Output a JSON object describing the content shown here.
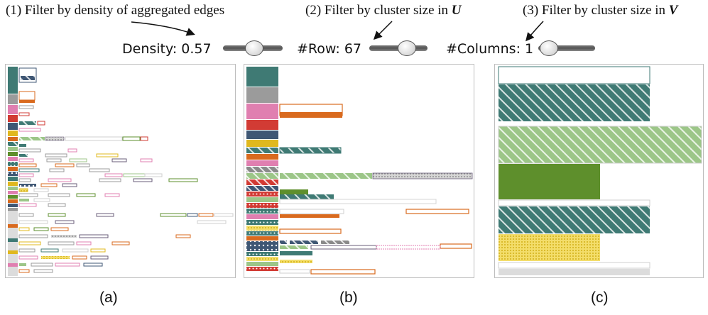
{
  "annotations": [
    {
      "num": "(1)",
      "text": "Filter by density of aggregated edges",
      "var": ""
    },
    {
      "num": "(2)",
      "text": "Filter by cluster size in ",
      "var": "U"
    },
    {
      "num": "(3)",
      "text": "Filter by cluster size in ",
      "var": "V"
    }
  ],
  "controls": {
    "density": {
      "label": "Density: 0.57",
      "value": 0.57
    },
    "rows": {
      "label": "#Row: 67",
      "value": 0.62
    },
    "columns": {
      "label": "#Columns: 1",
      "value": 0.05
    }
  },
  "panels": [
    {
      "caption": "(a)"
    },
    {
      "caption": "(b)"
    },
    {
      "caption": "(c)"
    }
  ],
  "colors": {
    "teal": "#3f7a74",
    "gray": "#9b9b9b",
    "pink": "#e07fb0",
    "red": "#d23b34",
    "navy": "#3f5774",
    "yellow": "#e0b81e",
    "orange": "#d96a1e",
    "lightgreen": "#9cc688",
    "green": "#5e8f2c",
    "lightgray": "#dcdcdc",
    "purple": "#6a5e7a"
  }
}
